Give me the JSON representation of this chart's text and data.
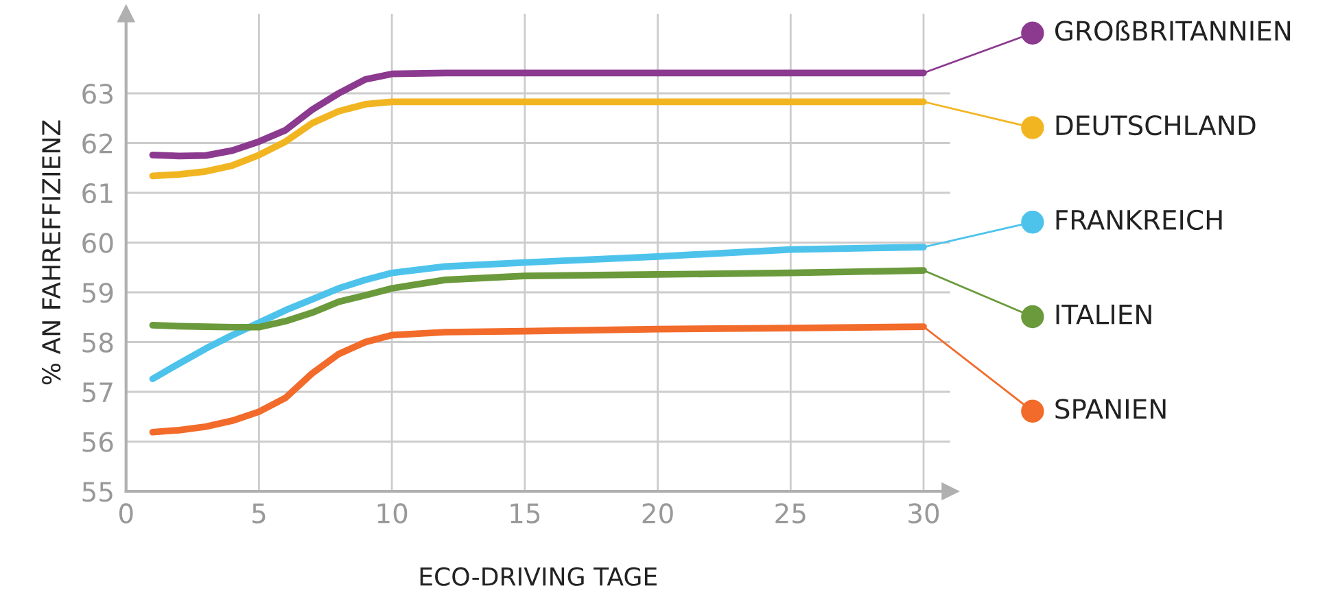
{
  "chart_data": {
    "type": "line",
    "xlabel": "ECO-DRIVING TAGE",
    "ylabel": "% AN FAHREFFIZIENZ",
    "xlim": [
      0,
      31
    ],
    "ylim": [
      55,
      64.6
    ],
    "xticks": [
      0,
      5,
      10,
      15,
      20,
      25,
      30
    ],
    "yticks": [
      55,
      56,
      57,
      58,
      59,
      60,
      61,
      62,
      63
    ],
    "grid": true,
    "legend": "right",
    "x": [
      1,
      2,
      3,
      4,
      5,
      6,
      7,
      8,
      9,
      10,
      12,
      15,
      20,
      25,
      30
    ],
    "series": [
      {
        "name": "GROßBRITANNIEN",
        "color": "#8b3a8f",
        "values": [
          61.76,
          61.74,
          61.75,
          61.85,
          62.03,
          62.26,
          62.67,
          63.0,
          63.28,
          63.39,
          63.41,
          63.41,
          63.41,
          63.41,
          63.41
        ]
      },
      {
        "name": "DEUTSCHLAND",
        "color": "#f2b522",
        "values": [
          61.34,
          61.37,
          61.43,
          61.55,
          61.76,
          62.03,
          62.4,
          62.64,
          62.78,
          62.83,
          62.83,
          62.83,
          62.83,
          62.83,
          62.83
        ]
      },
      {
        "name": "FRANKREICH",
        "color": "#4dc3ec",
        "values": [
          57.26,
          57.57,
          57.87,
          58.14,
          58.39,
          58.64,
          58.86,
          59.08,
          59.25,
          59.39,
          59.52,
          59.6,
          59.72,
          59.86,
          59.91
        ]
      },
      {
        "name": "ITALIEN",
        "color": "#6a9a3b",
        "values": [
          58.34,
          58.32,
          58.31,
          58.3,
          58.3,
          58.42,
          58.59,
          58.81,
          58.94,
          59.08,
          59.25,
          59.33,
          59.36,
          59.39,
          59.44
        ]
      },
      {
        "name": "SPANIEN",
        "color": "#f26b2a",
        "values": [
          56.19,
          56.23,
          56.3,
          56.42,
          56.6,
          56.88,
          57.37,
          57.76,
          58.0,
          58.14,
          58.2,
          58.22,
          58.26,
          58.28,
          58.31
        ]
      }
    ]
  }
}
